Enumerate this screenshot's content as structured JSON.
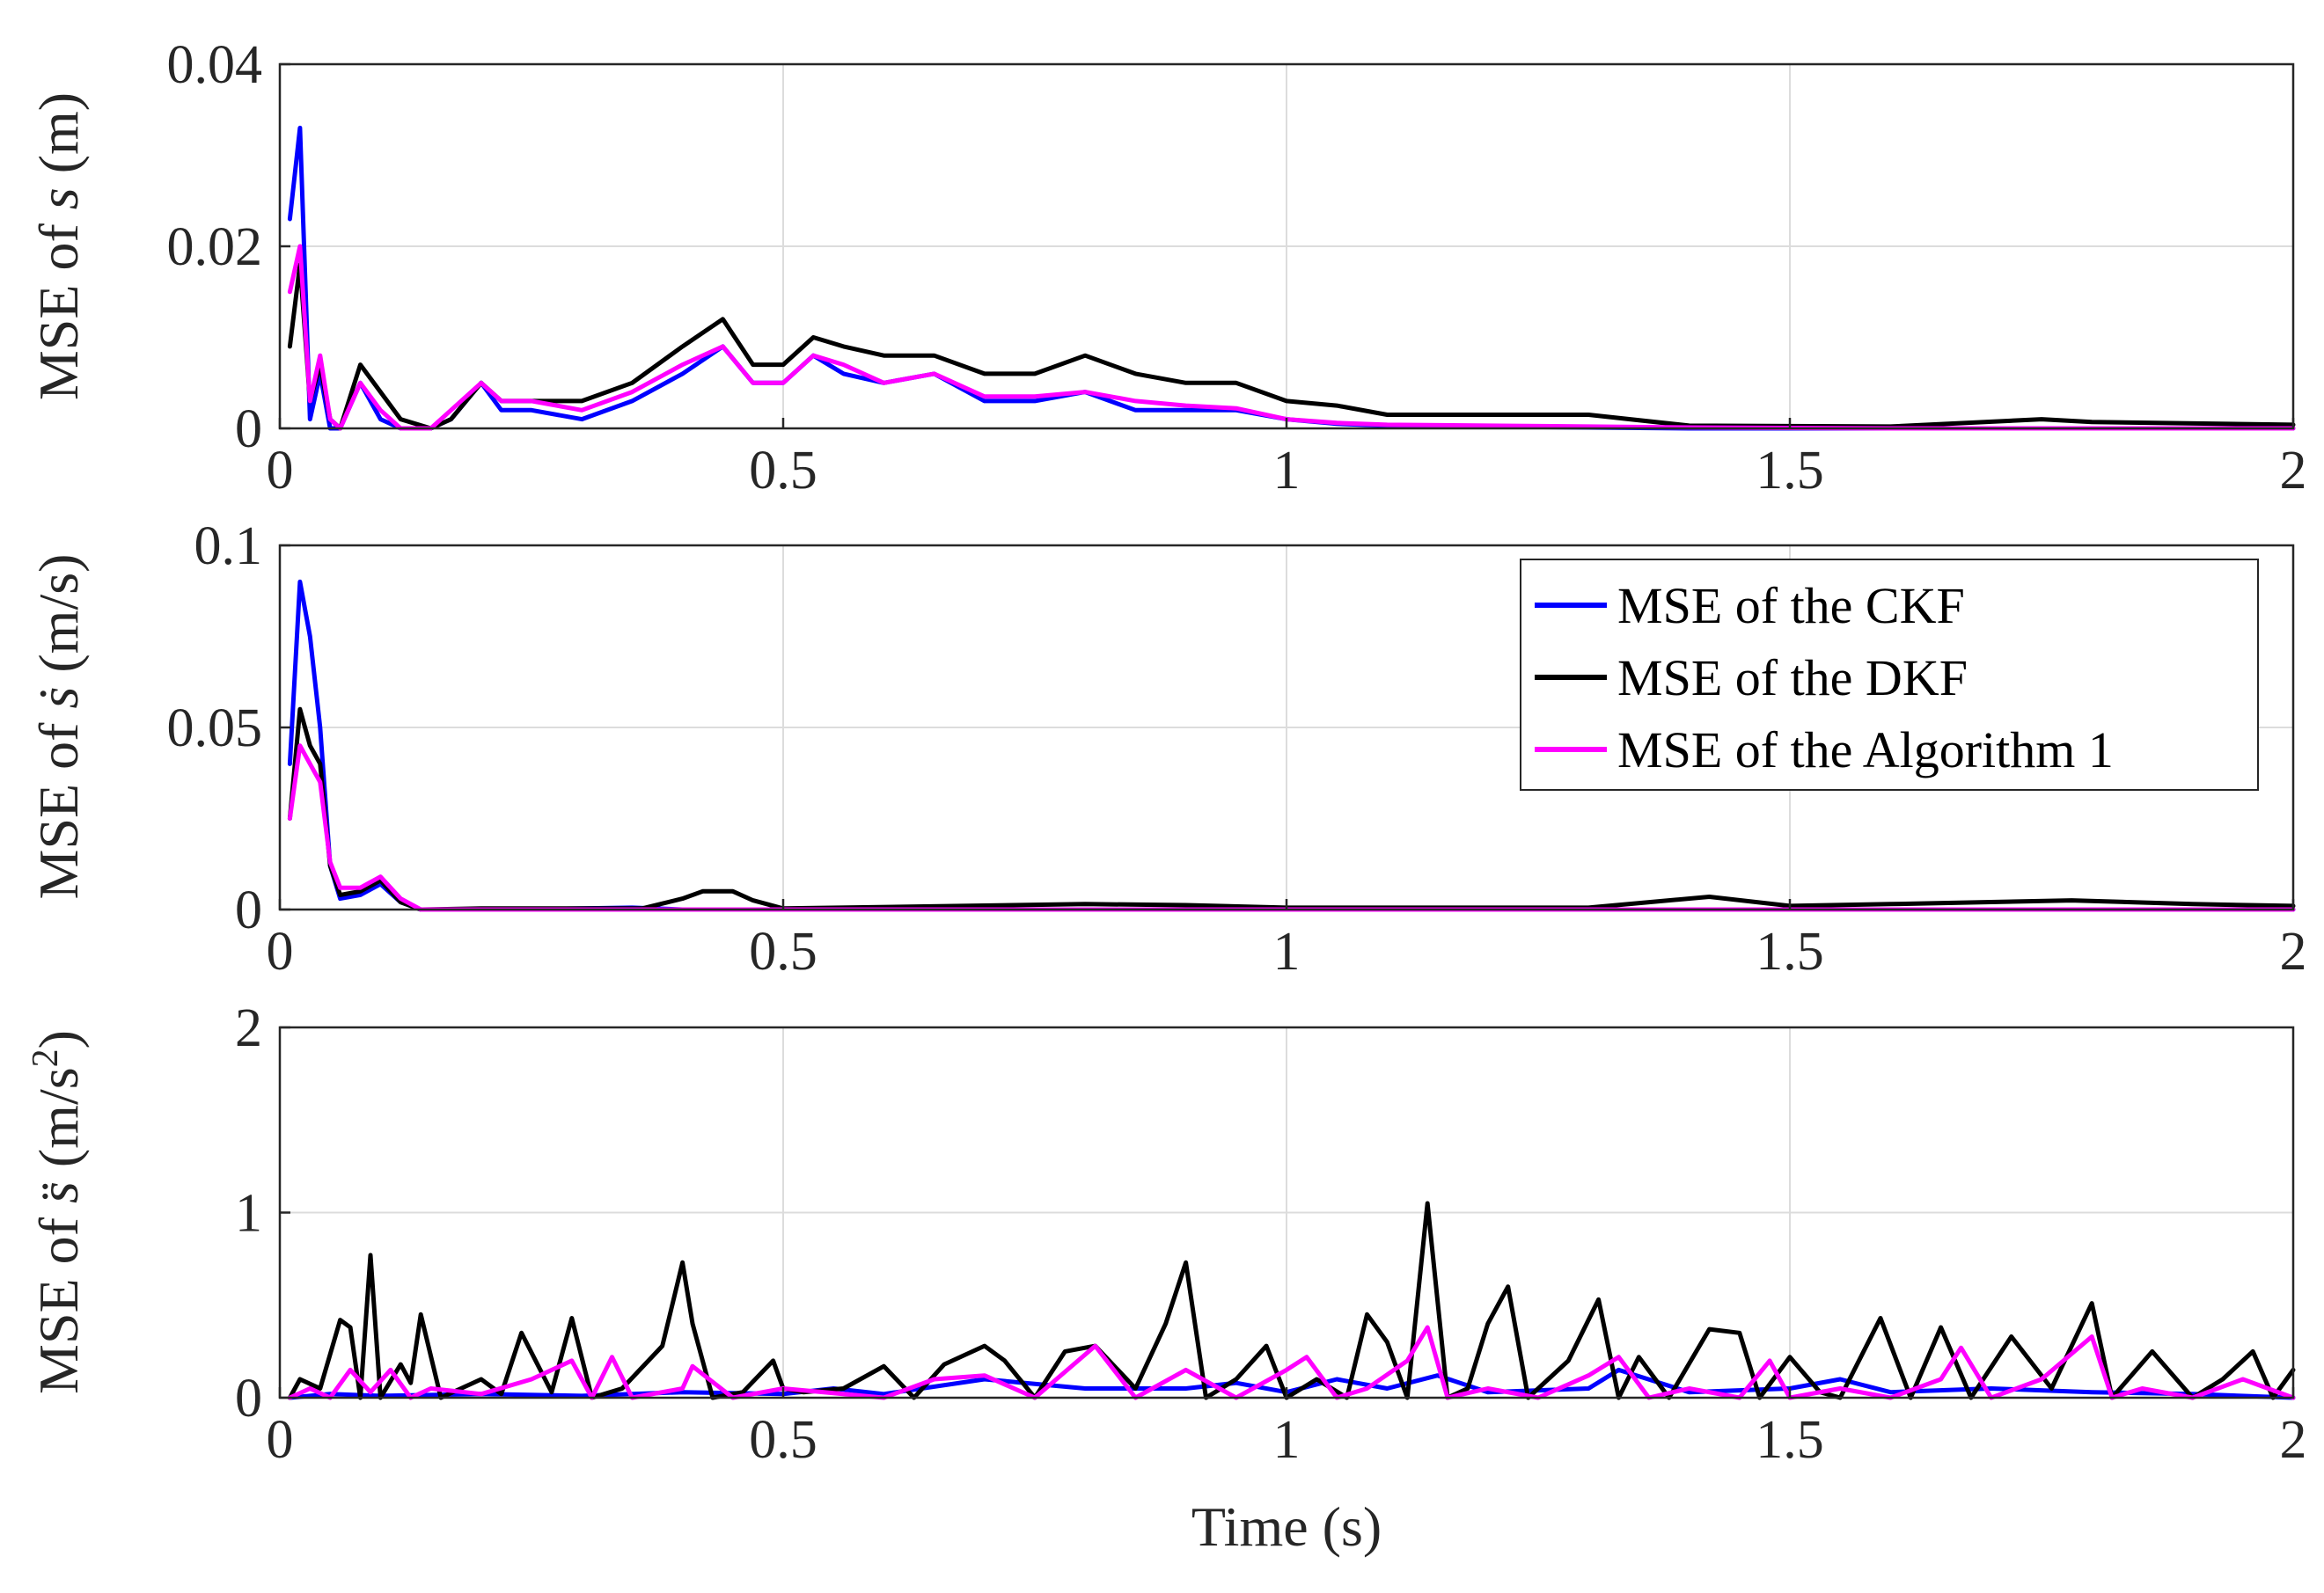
{
  "chart_data": [
    {
      "type": "line",
      "ylabel_parts": [
        "MSE of ",
        "s",
        " (m)"
      ],
      "xlabel": "",
      "xlim": [
        0,
        2
      ],
      "ylim": [
        0,
        0.04
      ],
      "xticks": [
        "0",
        "0.5",
        "1",
        "1.5",
        "2"
      ],
      "yticks": [
        "0",
        "0.02",
        "0.04"
      ],
      "yticks_values": [
        0,
        0.02,
        0.04
      ],
      "grid": true,
      "series": [
        {
          "name": "MSE of the CKF",
          "color": "#0000ff",
          "x": [
            0.01,
            0.02,
            0.03,
            0.04,
            0.05,
            0.06,
            0.08,
            0.1,
            0.12,
            0.15,
            0.17,
            0.2,
            0.22,
            0.25,
            0.3,
            0.35,
            0.4,
            0.44,
            0.47,
            0.5,
            0.53,
            0.56,
            0.6,
            0.65,
            0.7,
            0.75,
            0.8,
            0.85,
            0.9,
            0.95,
            1.0,
            1.05,
            1.1,
            1.2,
            1.3,
            1.4,
            1.6,
            1.8,
            2.0
          ],
          "y": [
            0.023,
            0.033,
            0.001,
            0.006,
            0.0,
            0.0,
            0.005,
            0.001,
            0.0,
            0.0,
            0.001,
            0.005,
            0.002,
            0.002,
            0.001,
            0.003,
            0.006,
            0.009,
            0.005,
            0.005,
            0.008,
            0.006,
            0.005,
            0.006,
            0.003,
            0.003,
            0.004,
            0.002,
            0.002,
            0.002,
            0.001,
            0.0005,
            0.0003,
            0.0002,
            0.0001,
            0.0,
            0.0,
            0.0,
            0.0
          ]
        },
        {
          "name": "MSE of the DKF",
          "color": "#000000",
          "x": [
            0.01,
            0.02,
            0.03,
            0.04,
            0.05,
            0.06,
            0.08,
            0.1,
            0.12,
            0.15,
            0.17,
            0.2,
            0.22,
            0.25,
            0.3,
            0.35,
            0.4,
            0.44,
            0.47,
            0.5,
            0.53,
            0.56,
            0.6,
            0.65,
            0.7,
            0.75,
            0.8,
            0.85,
            0.9,
            0.95,
            1.0,
            1.05,
            1.1,
            1.2,
            1.3,
            1.4,
            1.6,
            1.75,
            1.8,
            2.0
          ],
          "y": [
            0.009,
            0.018,
            0.003,
            0.007,
            0.001,
            0.0,
            0.007,
            0.004,
            0.001,
            0.0,
            0.001,
            0.005,
            0.003,
            0.003,
            0.003,
            0.005,
            0.009,
            0.012,
            0.007,
            0.007,
            0.01,
            0.009,
            0.008,
            0.008,
            0.006,
            0.006,
            0.008,
            0.006,
            0.005,
            0.005,
            0.003,
            0.0025,
            0.0015,
            0.0015,
            0.0015,
            0.0003,
            0.0002,
            0.001,
            0.0007,
            0.0004
          ]
        },
        {
          "name": "MSE of the Algorithm 1",
          "color": "#ff00ff",
          "x": [
            0.01,
            0.02,
            0.03,
            0.04,
            0.05,
            0.06,
            0.08,
            0.1,
            0.12,
            0.15,
            0.17,
            0.2,
            0.22,
            0.25,
            0.3,
            0.35,
            0.4,
            0.44,
            0.47,
            0.5,
            0.53,
            0.56,
            0.6,
            0.65,
            0.7,
            0.75,
            0.8,
            0.85,
            0.9,
            0.95,
            1.0,
            1.05,
            1.1,
            1.2,
            1.3,
            1.4,
            1.6,
            1.8,
            2.0
          ],
          "y": [
            0.015,
            0.02,
            0.003,
            0.008,
            0.001,
            0.0,
            0.005,
            0.002,
            0.0,
            0.0,
            0.002,
            0.005,
            0.003,
            0.003,
            0.002,
            0.004,
            0.007,
            0.009,
            0.005,
            0.005,
            0.008,
            0.007,
            0.005,
            0.006,
            0.0035,
            0.0035,
            0.004,
            0.003,
            0.0025,
            0.0022,
            0.001,
            0.0006,
            0.0004,
            0.0003,
            0.0002,
            0.0001,
            0.0,
            0.0,
            0.0
          ]
        }
      ]
    },
    {
      "type": "line",
      "ylabel_parts": [
        "MSE of ",
        "ṡ",
        " (m/s)"
      ],
      "xlabel": "",
      "xlim": [
        0,
        2
      ],
      "ylim": [
        0,
        0.1
      ],
      "xticks": [
        "0",
        "0.5",
        "1",
        "1.5",
        "2"
      ],
      "yticks": [
        "0",
        "0.05",
        "0.1"
      ],
      "yticks_values": [
        0,
        0.05,
        0.1
      ],
      "grid": true,
      "legend": {
        "placement": "top-right",
        "entries": [
          "MSE of the CKF",
          "MSE of the DKF",
          "MSE of the Algorithm 1"
        ]
      },
      "series": [
        {
          "name": "MSE of the CKF",
          "color": "#0000ff",
          "x": [
            0.01,
            0.02,
            0.03,
            0.04,
            0.05,
            0.06,
            0.08,
            0.1,
            0.12,
            0.14,
            0.2,
            0.3,
            0.35,
            0.4,
            0.5,
            1.0,
            1.5,
            2.0
          ],
          "y": [
            0.04,
            0.09,
            0.075,
            0.05,
            0.012,
            0.003,
            0.004,
            0.007,
            0.002,
            0.0,
            0.0,
            0.0003,
            0.0005,
            0.0,
            0.0,
            0.0,
            0.0,
            0.0
          ]
        },
        {
          "name": "MSE of the DKF",
          "color": "#000000",
          "x": [
            0.01,
            0.02,
            0.03,
            0.04,
            0.05,
            0.06,
            0.08,
            0.1,
            0.12,
            0.14,
            0.2,
            0.3,
            0.36,
            0.4,
            0.42,
            0.45,
            0.47,
            0.5,
            0.8,
            0.9,
            1.0,
            1.3,
            1.42,
            1.5,
            1.6,
            1.78,
            1.9,
            2.0
          ],
          "y": [
            0.025,
            0.055,
            0.045,
            0.04,
            0.012,
            0.004,
            0.005,
            0.008,
            0.002,
            0.0,
            0.0003,
            0.0003,
            0.0003,
            0.003,
            0.005,
            0.005,
            0.0025,
            0.0003,
            0.0015,
            0.0012,
            0.0005,
            0.0005,
            0.0035,
            0.001,
            0.0015,
            0.0025,
            0.0015,
            0.001
          ]
        },
        {
          "name": "MSE of the Algorithm 1",
          "color": "#ff00ff",
          "x": [
            0.01,
            0.02,
            0.03,
            0.04,
            0.05,
            0.06,
            0.08,
            0.1,
            0.12,
            0.14,
            0.2,
            0.5,
            1.0,
            1.5,
            2.0
          ],
          "y": [
            0.025,
            0.045,
            0.04,
            0.035,
            0.013,
            0.006,
            0.006,
            0.009,
            0.003,
            0.0,
            0.0,
            0.0,
            0.0,
            0.0,
            0.0
          ]
        }
      ]
    },
    {
      "type": "line",
      "ylabel_parts": [
        "MSE of ",
        "s̈",
        " (m/s",
        "2",
        ")"
      ],
      "xlabel": "Time (s)",
      "xlim": [
        0,
        2
      ],
      "ylim": [
        0,
        2
      ],
      "xticks": [
        "0",
        "0.5",
        "1",
        "1.5",
        "2"
      ],
      "yticks": [
        "0",
        "1",
        "2"
      ],
      "yticks_values": [
        0,
        1,
        2
      ],
      "grid": true,
      "series": [
        {
          "name": "MSE of the CKF",
          "color": "#0000ff",
          "x": [
            0.01,
            0.05,
            0.1,
            0.2,
            0.3,
            0.4,
            0.5,
            0.55,
            0.6,
            0.7,
            0.8,
            0.9,
            0.95,
            1.0,
            1.05,
            1.1,
            1.15,
            1.2,
            1.3,
            1.33,
            1.4,
            1.5,
            1.55,
            1.6,
            1.7,
            1.8,
            1.9,
            2.0
          ],
          "y": [
            0.0,
            0.02,
            0.01,
            0.02,
            0.01,
            0.03,
            0.02,
            0.05,
            0.02,
            0.1,
            0.05,
            0.05,
            0.08,
            0.03,
            0.1,
            0.05,
            0.12,
            0.03,
            0.05,
            0.15,
            0.03,
            0.05,
            0.1,
            0.03,
            0.05,
            0.03,
            0.02,
            0.0
          ]
        },
        {
          "name": "MSE of the DKF",
          "color": "#000000",
          "x": [
            0.01,
            0.02,
            0.04,
            0.06,
            0.07,
            0.08,
            0.09,
            0.1,
            0.12,
            0.13,
            0.14,
            0.16,
            0.2,
            0.22,
            0.24,
            0.27,
            0.29,
            0.31,
            0.34,
            0.38,
            0.4,
            0.41,
            0.43,
            0.46,
            0.49,
            0.5,
            0.52,
            0.56,
            0.6,
            0.63,
            0.66,
            0.7,
            0.72,
            0.75,
            0.78,
            0.81,
            0.85,
            0.88,
            0.9,
            0.92,
            0.95,
            0.98,
            1.0,
            1.03,
            1.06,
            1.08,
            1.1,
            1.12,
            1.14,
            1.16,
            1.18,
            1.2,
            1.22,
            1.24,
            1.28,
            1.31,
            1.33,
            1.35,
            1.38,
            1.42,
            1.45,
            1.47,
            1.5,
            1.53,
            1.55,
            1.59,
            1.62,
            1.65,
            1.68,
            1.72,
            1.76,
            1.8,
            1.82,
            1.86,
            1.9,
            1.93,
            1.96,
            1.98,
            2.0
          ],
          "y": [
            0.0,
            0.1,
            0.05,
            0.42,
            0.38,
            0.0,
            0.77,
            0.0,
            0.18,
            0.08,
            0.45,
            0.0,
            0.1,
            0.02,
            0.35,
            0.03,
            0.43,
            0.0,
            0.05,
            0.28,
            0.73,
            0.4,
            0.0,
            0.03,
            0.2,
            0.05,
            0.03,
            0.05,
            0.17,
            0.0,
            0.18,
            0.28,
            0.2,
            0.0,
            0.25,
            0.28,
            0.05,
            0.4,
            0.73,
            0.0,
            0.1,
            0.28,
            0.0,
            0.1,
            0.0,
            0.45,
            0.3,
            0.0,
            1.05,
            0.0,
            0.05,
            0.4,
            0.6,
            0.0,
            0.2,
            0.53,
            0.0,
            0.22,
            0.0,
            0.37,
            0.35,
            0.0,
            0.22,
            0.03,
            0.0,
            0.43,
            0.0,
            0.38,
            0.0,
            0.33,
            0.05,
            0.51,
            0.0,
            0.25,
            0.0,
            0.1,
            0.25,
            0.0,
            0.15
          ]
        },
        {
          "name": "MSE of the Algorithm 1",
          "color": "#ff00ff",
          "x": [
            0.01,
            0.03,
            0.05,
            0.07,
            0.09,
            0.11,
            0.13,
            0.15,
            0.2,
            0.25,
            0.29,
            0.31,
            0.33,
            0.35,
            0.4,
            0.41,
            0.45,
            0.5,
            0.6,
            0.65,
            0.7,
            0.75,
            0.81,
            0.85,
            0.9,
            0.95,
            1.0,
            1.02,
            1.05,
            1.08,
            1.12,
            1.14,
            1.16,
            1.2,
            1.25,
            1.3,
            1.33,
            1.36,
            1.4,
            1.45,
            1.48,
            1.5,
            1.55,
            1.6,
            1.65,
            1.67,
            1.7,
            1.75,
            1.8,
            1.82,
            1.85,
            1.9,
            1.95,
            2.0
          ],
          "y": [
            0.0,
            0.05,
            0.0,
            0.15,
            0.03,
            0.15,
            0.0,
            0.05,
            0.02,
            0.1,
            0.2,
            0.0,
            0.22,
            0.0,
            0.05,
            0.17,
            0.0,
            0.05,
            0.0,
            0.1,
            0.12,
            0.0,
            0.28,
            0.0,
            0.15,
            0.0,
            0.15,
            0.22,
            0.0,
            0.05,
            0.2,
            0.38,
            0.0,
            0.05,
            0.0,
            0.12,
            0.22,
            0.0,
            0.05,
            0.0,
            0.2,
            0.0,
            0.05,
            0.0,
            0.1,
            0.27,
            0.0,
            0.1,
            0.33,
            0.0,
            0.05,
            0.0,
            0.1,
            0.0
          ]
        }
      ]
    }
  ]
}
